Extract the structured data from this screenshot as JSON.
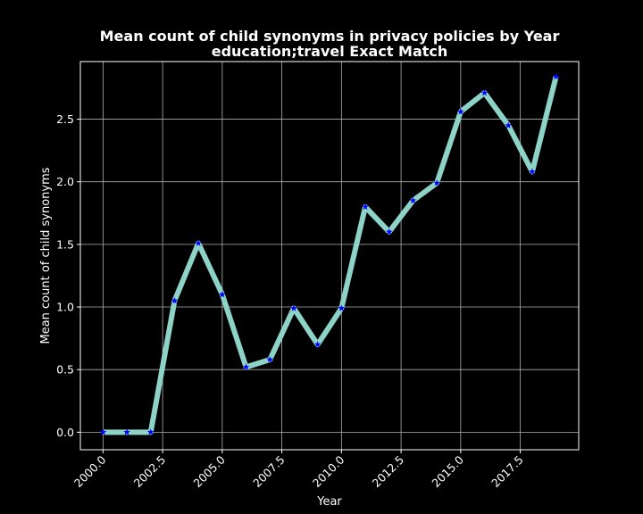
{
  "chart_data": {
    "type": "line",
    "title": [
      "Mean count of child synonyms in privacy policies by Year",
      "education;travel Exact Match"
    ],
    "xlabel": "Year",
    "ylabel": "Mean count of child synonyms",
    "xlim": [
      1999.05,
      2019.95
    ],
    "ylim": [
      -0.14,
      2.96
    ],
    "xticks": [
      2000.0,
      2002.5,
      2005.0,
      2007.5,
      2010.0,
      2012.5,
      2015.0,
      2017.5
    ],
    "xtick_labels": [
      "2000.0",
      "2002.5",
      "2005.0",
      "2007.5",
      "2010.0",
      "2012.5",
      "2015.0",
      "2017.5"
    ],
    "yticks": [
      0.0,
      0.5,
      1.0,
      1.5,
      2.0,
      2.5
    ],
    "ytick_labels": [
      "0.0",
      "0.5",
      "1.0",
      "1.5",
      "2.0",
      "2.5"
    ],
    "grid": true,
    "series": [
      {
        "line_color": "#8dd3c7",
        "marker_color": "#0000ff",
        "marker": "star",
        "x": [
          2000,
          2001,
          2002,
          2003,
          2004,
          2005,
          2006,
          2007,
          2008,
          2009,
          2010,
          2011,
          2012,
          2013,
          2014,
          2015,
          2016,
          2017,
          2018,
          2019
        ],
        "y": [
          0.0,
          0.0,
          0.0,
          1.05,
          1.51,
          1.1,
          0.52,
          0.58,
          0.99,
          0.7,
          0.99,
          1.8,
          1.6,
          1.85,
          1.99,
          2.56,
          2.71,
          2.45,
          2.08,
          2.84
        ]
      }
    ]
  }
}
